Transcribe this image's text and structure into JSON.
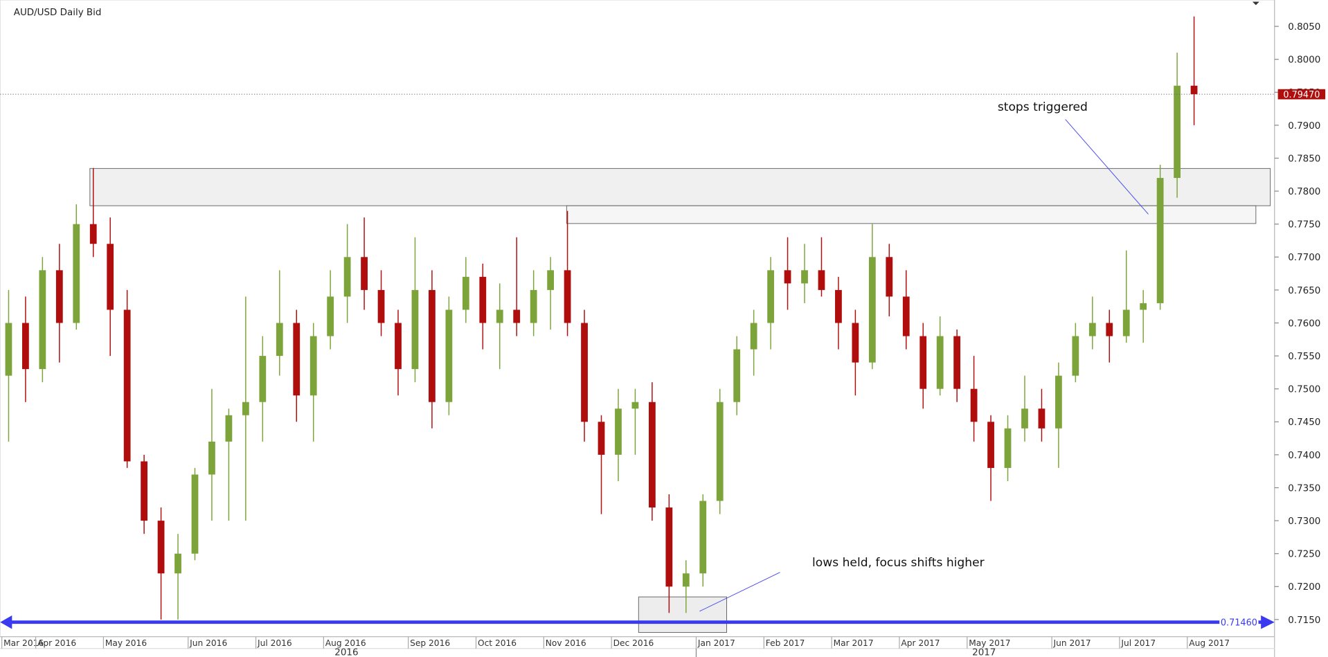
{
  "chart_data": {
    "type": "candlestick",
    "title": "AUD/USD  Daily Bid",
    "categories": [
      "Mar 2016",
      null,
      "Apr 2016",
      null,
      null,
      null,
      "May 2016",
      null,
      null,
      null,
      null,
      "Jun 2016",
      null,
      null,
      null,
      "Jul 2016",
      null,
      null,
      null,
      "Aug 2016",
      null,
      null,
      null,
      null,
      "Sep 2016",
      null,
      null,
      null,
      "Oct 2016",
      null,
      null,
      null,
      "Nov 2016",
      null,
      null,
      null,
      "Dec 2016",
      null,
      null,
      null,
      null,
      "Jan 2017",
      null,
      null,
      null,
      "Feb 2017",
      null,
      null,
      null,
      "Mar 2017",
      null,
      null,
      null,
      "Apr 2017",
      null,
      null,
      null,
      "May 2017",
      null,
      null,
      null,
      null,
      "Jun 2017",
      null,
      null,
      null,
      "Jul 2017",
      null,
      null,
      null,
      "Aug 2017"
    ],
    "open": [
      0.752,
      0.76,
      0.753,
      0.768,
      0.76,
      0.775,
      0.772,
      0.762,
      0.739,
      0.73,
      0.722,
      0.725,
      0.737,
      0.742,
      0.746,
      0.748,
      0.755,
      0.76,
      0.749,
      0.758,
      0.764,
      0.77,
      0.765,
      0.76,
      0.753,
      0.765,
      0.748,
      0.762,
      0.767,
      0.76,
      0.762,
      0.76,
      0.765,
      0.768,
      0.76,
      0.745,
      0.74,
      0.747,
      0.748,
      0.732,
      0.72,
      0.722,
      0.733,
      0.748,
      0.756,
      0.76,
      0.768,
      0.766,
      0.768,
      0.765,
      0.76,
      0.754,
      0.77,
      0.764,
      0.758,
      0.75,
      0.758,
      0.75,
      0.745,
      0.738,
      0.744,
      0.747,
      0.744,
      0.752,
      0.758,
      0.76,
      0.758,
      0.762,
      0.763,
      0.782,
      0.796
    ],
    "high": [
      0.765,
      0.764,
      0.77,
      0.772,
      0.778,
      0.7835,
      0.776,
      0.765,
      0.74,
      0.732,
      0.728,
      0.738,
      0.75,
      0.747,
      0.764,
      0.758,
      0.768,
      0.762,
      0.76,
      0.768,
      0.775,
      0.776,
      0.768,
      0.762,
      0.773,
      0.768,
      0.764,
      0.77,
      0.769,
      0.766,
      0.773,
      0.768,
      0.77,
      0.777,
      0.762,
      0.746,
      0.75,
      0.75,
      0.751,
      0.734,
      0.724,
      0.734,
      0.75,
      0.758,
      0.762,
      0.77,
      0.773,
      0.772,
      0.773,
      0.767,
      0.762,
      0.775,
      0.772,
      0.768,
      0.76,
      0.761,
      0.759,
      0.755,
      0.746,
      0.746,
      0.752,
      0.75,
      0.754,
      0.76,
      0.764,
      0.762,
      0.771,
      0.765,
      0.784,
      0.801,
      0.8065
    ],
    "low": [
      0.742,
      0.748,
      0.751,
      0.754,
      0.759,
      0.77,
      0.755,
      0.738,
      0.728,
      0.715,
      0.715,
      0.724,
      0.73,
      0.73,
      0.73,
      0.742,
      0.752,
      0.745,
      0.742,
      0.756,
      0.76,
      0.762,
      0.758,
      0.749,
      0.751,
      0.744,
      0.746,
      0.76,
      0.756,
      0.753,
      0.758,
      0.758,
      0.759,
      0.758,
      0.742,
      0.731,
      0.736,
      0.74,
      0.73,
      0.716,
      0.716,
      0.72,
      0.731,
      0.746,
      0.752,
      0.756,
      0.762,
      0.763,
      0.764,
      0.756,
      0.749,
      0.753,
      0.761,
      0.756,
      0.747,
      0.749,
      0.748,
      0.742,
      0.733,
      0.736,
      0.742,
      0.742,
      0.738,
      0.751,
      0.756,
      0.754,
      0.757,
      0.757,
      0.762,
      0.779,
      0.79
    ],
    "close": [
      0.76,
      0.753,
      0.768,
      0.76,
      0.775,
      0.772,
      0.762,
      0.739,
      0.73,
      0.722,
      0.725,
      0.737,
      0.742,
      0.746,
      0.748,
      0.755,
      0.76,
      0.749,
      0.758,
      0.764,
      0.77,
      0.765,
      0.76,
      0.753,
      0.765,
      0.748,
      0.762,
      0.767,
      0.76,
      0.762,
      0.76,
      0.765,
      0.768,
      0.76,
      0.745,
      0.74,
      0.747,
      0.748,
      0.732,
      0.72,
      0.722,
      0.733,
      0.748,
      0.756,
      0.76,
      0.768,
      0.766,
      0.768,
      0.765,
      0.76,
      0.754,
      0.77,
      0.764,
      0.758,
      0.75,
      0.758,
      0.75,
      0.745,
      0.738,
      0.744,
      0.747,
      0.744,
      0.752,
      0.758,
      0.76,
      0.758,
      0.762,
      0.763,
      0.782,
      0.796,
      0.7947
    ],
    "up_color": "#7da43a",
    "down_color": "#b00d0d",
    "ylim": [
      0.7124,
      0.809
    ],
    "yticks": [
      {
        "value": 0.715,
        "label": "0.7150"
      },
      {
        "value": 0.72,
        "label": "0.7200"
      },
      {
        "value": 0.725,
        "label": "0.7250"
      },
      {
        "value": 0.73,
        "label": "0.7300"
      },
      {
        "value": 0.735,
        "label": "0.7350"
      },
      {
        "value": 0.74,
        "label": "0.7400"
      },
      {
        "value": 0.745,
        "label": "0.7450"
      },
      {
        "value": 0.75,
        "label": "0.7500"
      },
      {
        "value": 0.755,
        "label": "0.7550"
      },
      {
        "value": 0.76,
        "label": "0.7600"
      },
      {
        "value": 0.765,
        "label": "0.7650"
      },
      {
        "value": 0.77,
        "label": "0.7700"
      },
      {
        "value": 0.775,
        "label": "0.7750"
      },
      {
        "value": 0.78,
        "label": "0.7800"
      },
      {
        "value": 0.785,
        "label": "0.7850"
      },
      {
        "value": 0.79,
        "label": "0.7900"
      },
      {
        "value": 0.795,
        "label": "0.7950"
      },
      {
        "value": 0.8,
        "label": "0.8000"
      },
      {
        "value": 0.805,
        "label": "0.8050"
      }
    ],
    "level_line": {
      "value": 0.7146,
      "label": "0.71460",
      "color": "#3a3af0"
    },
    "last_price": {
      "value": 0.7947,
      "label": "0.79470",
      "color": "#b00d0d"
    },
    "annotations": [
      "stops triggered",
      "lows held, focus shifts higher"
    ],
    "years": [
      "2016",
      "2017"
    ]
  }
}
